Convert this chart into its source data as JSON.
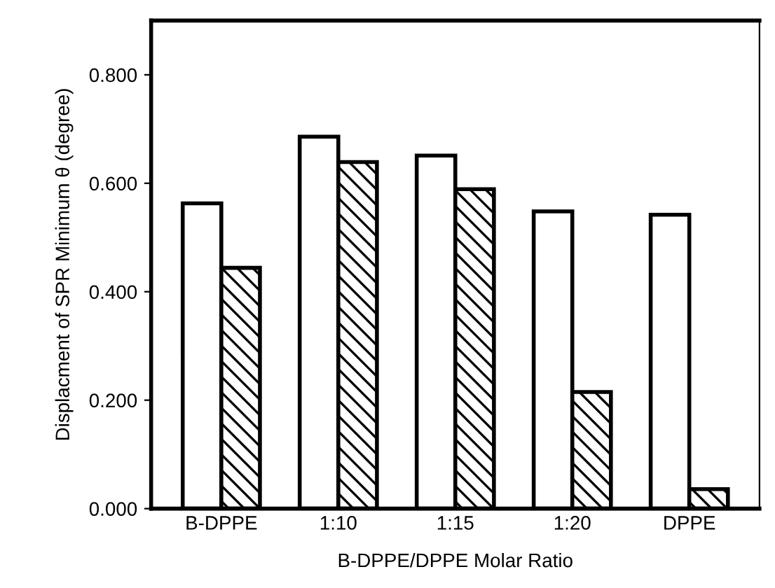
{
  "chart_data": {
    "type": "bar",
    "xlabel": "B-DPPE/DPPE Molar Ratio",
    "ylabel": "Displacment of SPR Minimum θ (degree)",
    "categories": [
      "B-DPPE",
      "1:10",
      "1:15",
      "1:20",
      "DPPE"
    ],
    "series": [
      {
        "color": "#ffffff",
        "values": [
          0.563,
          0.686,
          0.651,
          0.548,
          0.542
        ]
      },
      {
        "color": "#000000",
        "values": [
          0.444,
          0.639,
          0.589,
          0.215,
          0.036
        ]
      }
    ],
    "ylim": [
      0,
      0.9
    ],
    "yticks": [
      {
        "value": 0,
        "label": "0.000"
      },
      {
        "value": 0.2,
        "label": "0.200"
      },
      {
        "value": 0.4,
        "label": "0.400"
      },
      {
        "value": 0.6,
        "label": "0.600"
      },
      {
        "value": 0.8,
        "label": "0.800"
      }
    ],
    "grid": false,
    "legend": false
  }
}
